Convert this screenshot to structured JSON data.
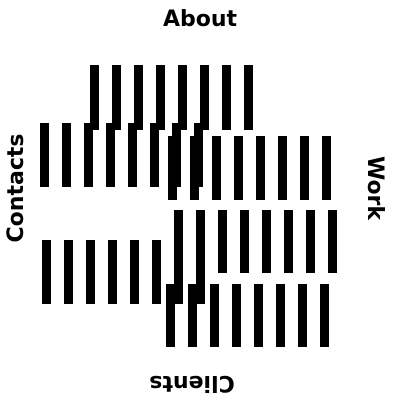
{
  "nav": {
    "top": "About",
    "right": "Work",
    "bottom": "Clients",
    "left": "Contacts"
  },
  "colors": {
    "background": "#ffffff",
    "foreground": "#000000"
  }
}
